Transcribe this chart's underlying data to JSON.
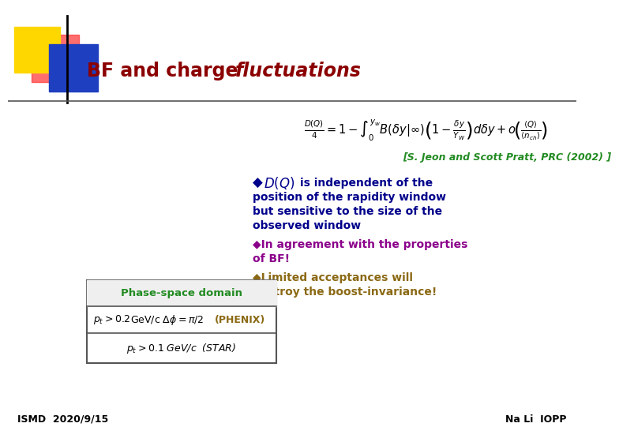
{
  "bg_color": "#FFFFFF",
  "title_part1": "BF and charge ",
  "title_part2": "fluctuations",
  "title_color": "#8B0000",
  "reference": "[S. Jeon and Scott Pratt, PRC (2002) ]",
  "reference_color": "#228B22",
  "bullet1_color": "#00008B",
  "bullet2_color": "#8B008B",
  "bullet3_color": "#8B6914",
  "diamond": "◆",
  "table_title": "Phase-space domain",
  "table_title_color": "#228B22",
  "footer_left": "ISMD  2020/9/15",
  "footer_right": "Na Li  IOPP",
  "footer_color": "#000000",
  "line_color": "#555555",
  "deco_yellow": "#FFD700",
  "deco_red": "#FF3030",
  "deco_blue": "#1E3FBF"
}
